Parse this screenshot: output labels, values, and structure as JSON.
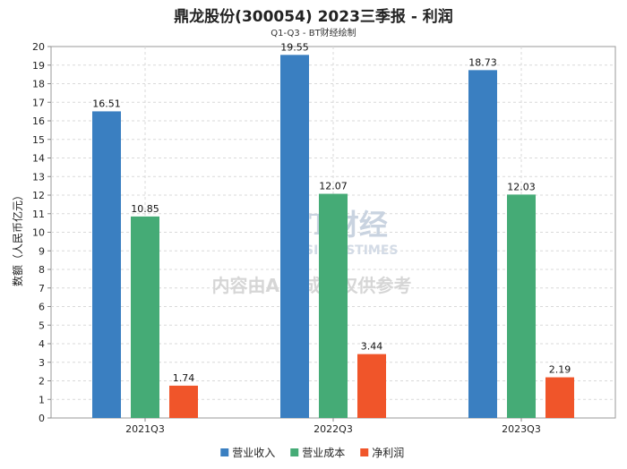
{
  "chart_data": {
    "type": "bar",
    "title": "鼎龙股份(300054) 2023三季报 - 利润",
    "subtitle": "Q1-Q3 - BT财经绘制",
    "ylabel": "数额（人民币亿元）",
    "xlabel": "",
    "ylim": [
      0,
      20
    ],
    "yticks": [
      0,
      1,
      2,
      3,
      4,
      5,
      6,
      7,
      8,
      9,
      10,
      11,
      12,
      13,
      14,
      15,
      16,
      17,
      18,
      19,
      20
    ],
    "grid": true,
    "legend_position": "bottom",
    "categories": [
      "2021Q3",
      "2022Q3",
      "2023Q3"
    ],
    "series": [
      {
        "name": "营业收入",
        "color": "#3a7fc1",
        "values": [
          16.51,
          19.55,
          18.73
        ]
      },
      {
        "name": "营业成本",
        "color": "#45ab76",
        "values": [
          10.85,
          12.07,
          12.03
        ]
      },
      {
        "name": "净利润",
        "color": "#f0552a",
        "values": [
          1.74,
          3.44,
          2.19
        ]
      }
    ]
  },
  "watermark": {
    "brand": "BT财经",
    "brand_sub": "BUSINESSTIMES",
    "note": "内容由AI生成，仅供参考"
  }
}
